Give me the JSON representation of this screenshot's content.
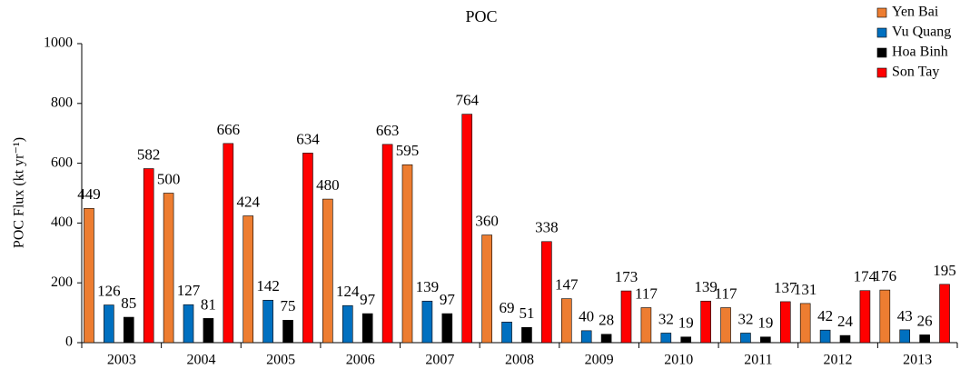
{
  "chart_data": {
    "type": "bar",
    "title": "POC",
    "y_label": "POC Flux (kt yr⁻¹)",
    "categories": [
      "2003",
      "2004",
      "2005",
      "2006",
      "2007",
      "2008",
      "2009",
      "2010",
      "2011",
      "2012",
      "2013"
    ],
    "series": [
      {
        "name": "Yen Bai",
        "color": "#ed7d31",
        "values": [
          449,
          500,
          424,
          480,
          595,
          360,
          147,
          117,
          117,
          131,
          176
        ]
      },
      {
        "name": "Vu Quang",
        "color": "#0070c0",
        "values": [
          126,
          127,
          142,
          124,
          139,
          69,
          40,
          32,
          32,
          42,
          43
        ]
      },
      {
        "name": "Hoa Binh",
        "color": "#000000",
        "values": [
          85,
          81,
          75,
          97,
          97,
          51,
          28,
          19,
          19,
          24,
          26
        ]
      },
      {
        "name": "Son Tay",
        "color": "#ff0000",
        "values": [
          582,
          666,
          634,
          663,
          764,
          338,
          173,
          139,
          137,
          174,
          195
        ]
      }
    ],
    "ylim": [
      0,
      1000
    ],
    "yticks": [
      0,
      200,
      400,
      600,
      800,
      1000
    ],
    "grid": false,
    "legend": "top-right"
  }
}
